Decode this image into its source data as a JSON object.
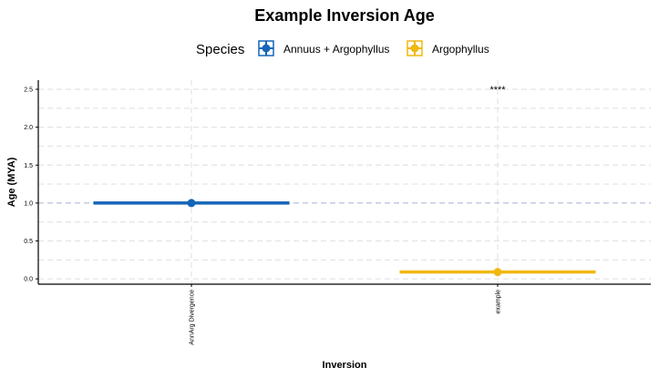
{
  "chart_data": {
    "type": "scatter",
    "title": "Example Inversion Age",
    "xlabel": "Inversion",
    "ylabel": "Age (MYA)",
    "categories": [
      "AnnArg Divergence",
      "example"
    ],
    "ylim": [
      -0.07,
      2.62
    ],
    "yticks": [
      0.0,
      0.5,
      1.0,
      1.5,
      2.0,
      2.5
    ],
    "ytick_labels": [
      "0.0",
      "0.5",
      "1.0",
      "1.5",
      "2.0",
      "2.5"
    ],
    "grid": true,
    "legend": {
      "title": "Species",
      "position": "top",
      "entries": [
        {
          "label": "Annuus + Argophyllus",
          "color": "#1565b8"
        },
        {
          "label": "Argophyllus",
          "color": "#f0b811"
        }
      ]
    },
    "reference_line": {
      "y": 1.0,
      "color": "#b9c3de"
    },
    "series": [
      {
        "name": "Annuus + Argophyllus",
        "color": "#1565b8",
        "category": "AnnArg Divergence",
        "y": 1.0
      },
      {
        "name": "Argophyllus",
        "color": "#f0b811",
        "category": "example",
        "y": 0.09
      }
    ],
    "annotations": [
      {
        "text": "****",
        "category": "example",
        "y": 2.5
      }
    ]
  }
}
